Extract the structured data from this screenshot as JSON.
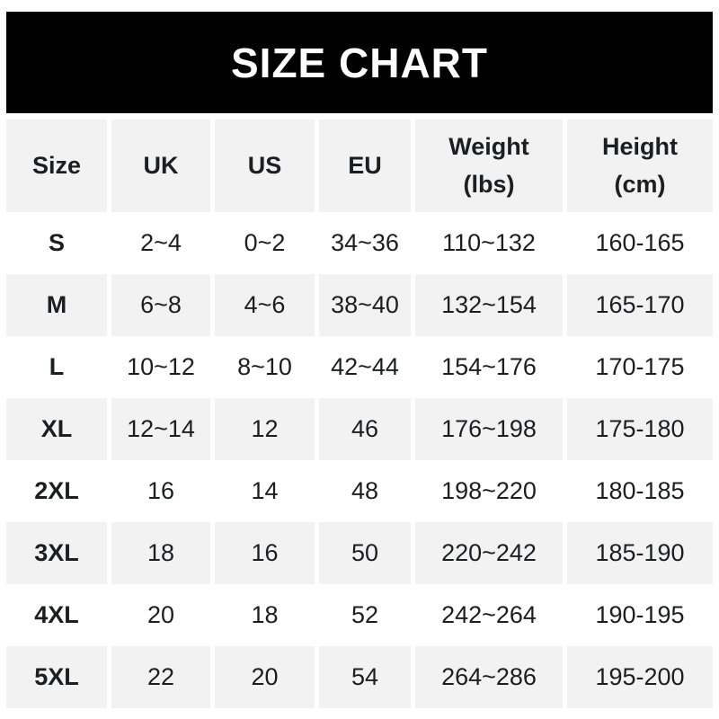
{
  "banner": {
    "title": "SIZE CHART"
  },
  "colors": {
    "page_bg": "#ffffff",
    "banner_bg": "#010101",
    "banner_text": "#ffffff",
    "row_alt_bg": "#f2f2f2",
    "text": "#1d1e20"
  },
  "table": {
    "headers": [
      {
        "line1": "Size",
        "line2": ""
      },
      {
        "line1": "UK",
        "line2": ""
      },
      {
        "line1": "US",
        "line2": ""
      },
      {
        "line1": "EU",
        "line2": ""
      },
      {
        "line1": "Weight",
        "line2": "(lbs)"
      },
      {
        "line1": "Height",
        "line2": "(cm)"
      }
    ]
  },
  "chart_data": {
    "type": "table",
    "title": "SIZE CHART",
    "columns": [
      "Size",
      "UK",
      "US",
      "EU",
      "Weight (lbs)",
      "Height (cm)"
    ],
    "rows": [
      [
        "S",
        "2~4",
        "0~2",
        "34~36",
        "110~132",
        "160-165"
      ],
      [
        "M",
        "6~8",
        "4~6",
        "38~40",
        "132~154",
        "165-170"
      ],
      [
        "L",
        "10~12",
        "8~10",
        "42~44",
        "154~176",
        "170-175"
      ],
      [
        "XL",
        "12~14",
        "12",
        "46",
        "176~198",
        "175-180"
      ],
      [
        "2XL",
        "16",
        "14",
        "48",
        "198~220",
        "180-185"
      ],
      [
        "3XL",
        "18",
        "16",
        "50",
        "220~242",
        "185-190"
      ],
      [
        "4XL",
        "20",
        "18",
        "52",
        "242~264",
        "190-195"
      ],
      [
        "5XL",
        "22",
        "20",
        "54",
        "264~286",
        "195-200"
      ]
    ]
  }
}
